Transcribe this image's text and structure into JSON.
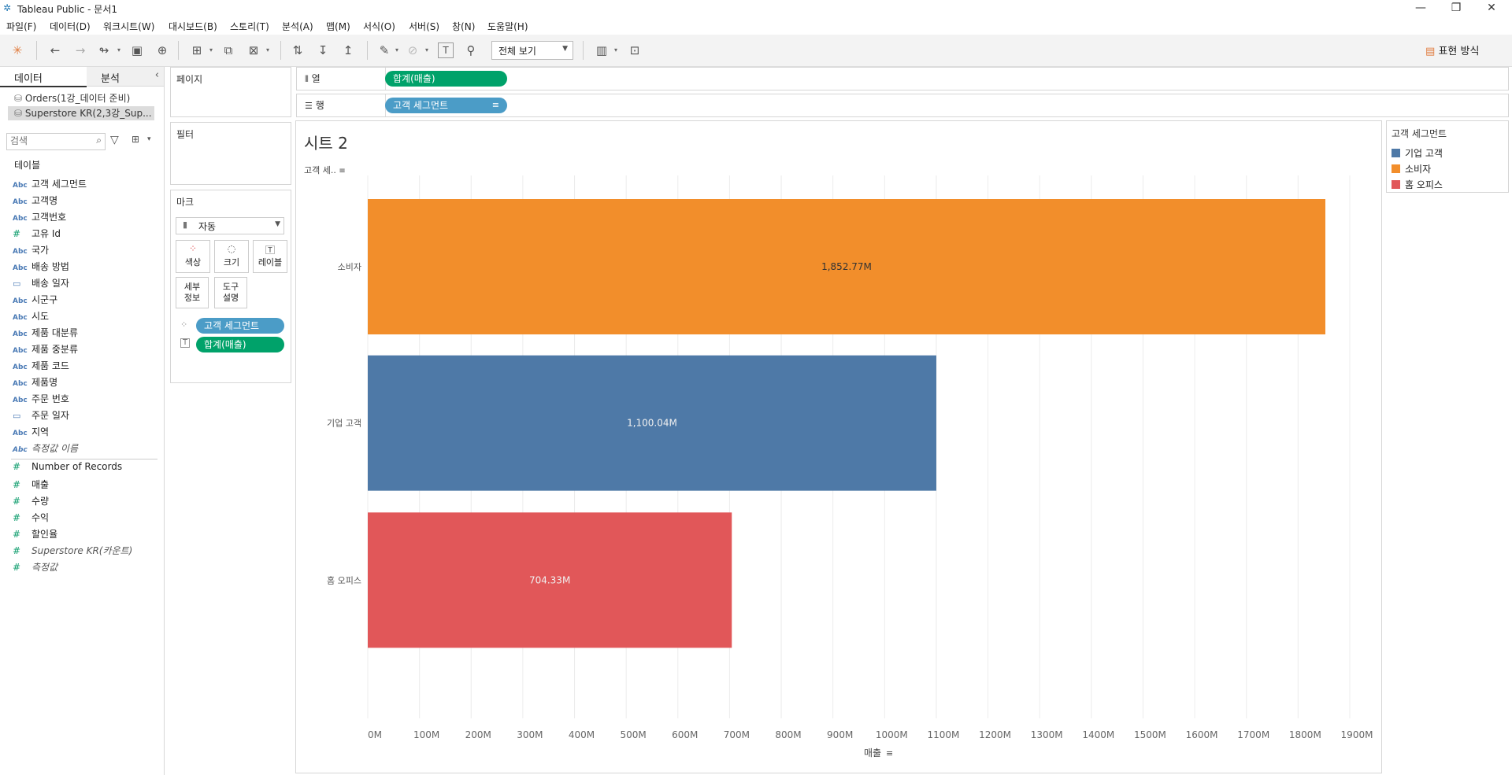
{
  "window": {
    "title": "Tableau Public - 문서1",
    "controls": [
      "—",
      "❐",
      "✕"
    ]
  },
  "menu": [
    "파일(F)",
    "데이터(D)",
    "워크시트(W)",
    "대시보드(B)",
    "스토리(T)",
    "분석(A)",
    "맵(M)",
    "서식(O)",
    "서버(S)",
    "창(N)",
    "도움말(H)"
  ],
  "toolbar": {
    "view_select": "전체 보기",
    "show_me": "표현 방식"
  },
  "datapane": {
    "tabs": [
      "데이터",
      "분석"
    ],
    "sources": [
      "Orders(1강_데이터 준비)",
      "Superstore KR(2,3강_Sup..."
    ],
    "search_placeholder": "검색",
    "section_title": "테이블",
    "dimensions": [
      {
        "icon": "Abc",
        "label": "고객 세그먼트"
      },
      {
        "icon": "Abc",
        "label": "고객명"
      },
      {
        "icon": "Abc",
        "label": "고객번호"
      },
      {
        "icon": "#",
        "label": "고유 Id"
      },
      {
        "icon": "Abc",
        "label": "국가"
      },
      {
        "icon": "Abc",
        "label": "배송 방법"
      },
      {
        "icon": "cal",
        "label": "배송 일자"
      },
      {
        "icon": "Abc",
        "label": "시군구"
      },
      {
        "icon": "Abc",
        "label": "시도"
      },
      {
        "icon": "Abc",
        "label": "제품 대분류"
      },
      {
        "icon": "Abc",
        "label": "제품 중분류"
      },
      {
        "icon": "Abc",
        "label": "제품 코드"
      },
      {
        "icon": "Abc",
        "label": "제품명"
      },
      {
        "icon": "Abc",
        "label": "주문 번호"
      },
      {
        "icon": "cal",
        "label": "주문 일자"
      },
      {
        "icon": "Abc",
        "label": "지역"
      },
      {
        "icon": "Abc",
        "label": "측정값 이름"
      }
    ],
    "measures": [
      {
        "icon": "#",
        "label": "Number of Records"
      },
      {
        "icon": "#",
        "label": "매출"
      },
      {
        "icon": "#",
        "label": "수량"
      },
      {
        "icon": "#",
        "label": "수익"
      },
      {
        "icon": "#",
        "label": "할인율"
      },
      {
        "icon": "#",
        "label": "Superstore KR(카운트)"
      },
      {
        "icon": "#",
        "label": "측정값"
      }
    ]
  },
  "cards": {
    "pages": "페이지",
    "filters": "필터",
    "marks": {
      "title": "마크",
      "type": "자동",
      "buttons": [
        "색상",
        "크기",
        "레이블",
        "세부\n정보",
        "도구\n설명"
      ],
      "pills": [
        "고객 세그먼트",
        "합계(매출)"
      ]
    }
  },
  "shelves": {
    "columns": {
      "label": "열",
      "pill": "합계(매출)"
    },
    "rows": {
      "label": "행",
      "pill": "고객 세그먼트"
    }
  },
  "sheet": {
    "title": "시트 2",
    "row_header": "고객 세.."
  },
  "legend": {
    "title": "고객 세그먼트",
    "items": [
      {
        "label": "기업 고객",
        "color": "#4e79a7"
      },
      {
        "label": "소비자",
        "color": "#f28e2b"
      },
      {
        "label": "홈 오피스",
        "color": "#e15759"
      }
    ]
  },
  "chart_data": {
    "type": "bar",
    "orientation": "horizontal",
    "categories": [
      "소비자",
      "기업 고객",
      "홈 오피스"
    ],
    "values": [
      1852.77,
      1100.04,
      704.33
    ],
    "value_labels": [
      "1,852.77M",
      "1,100.04M",
      "704.33M"
    ],
    "colors": [
      "#f28e2b",
      "#4e79a7",
      "#e15759"
    ],
    "xlabel": "매출",
    "xlim": [
      0,
      1900
    ],
    "xticks": [
      "0M",
      "100M",
      "200M",
      "300M",
      "400M",
      "500M",
      "600M",
      "700M",
      "800M",
      "900M",
      "1000M",
      "1100M",
      "1200M",
      "1300M",
      "1400M",
      "1500M",
      "1600M",
      "1700M",
      "1800M",
      "1900M"
    ],
    "grid": true
  }
}
